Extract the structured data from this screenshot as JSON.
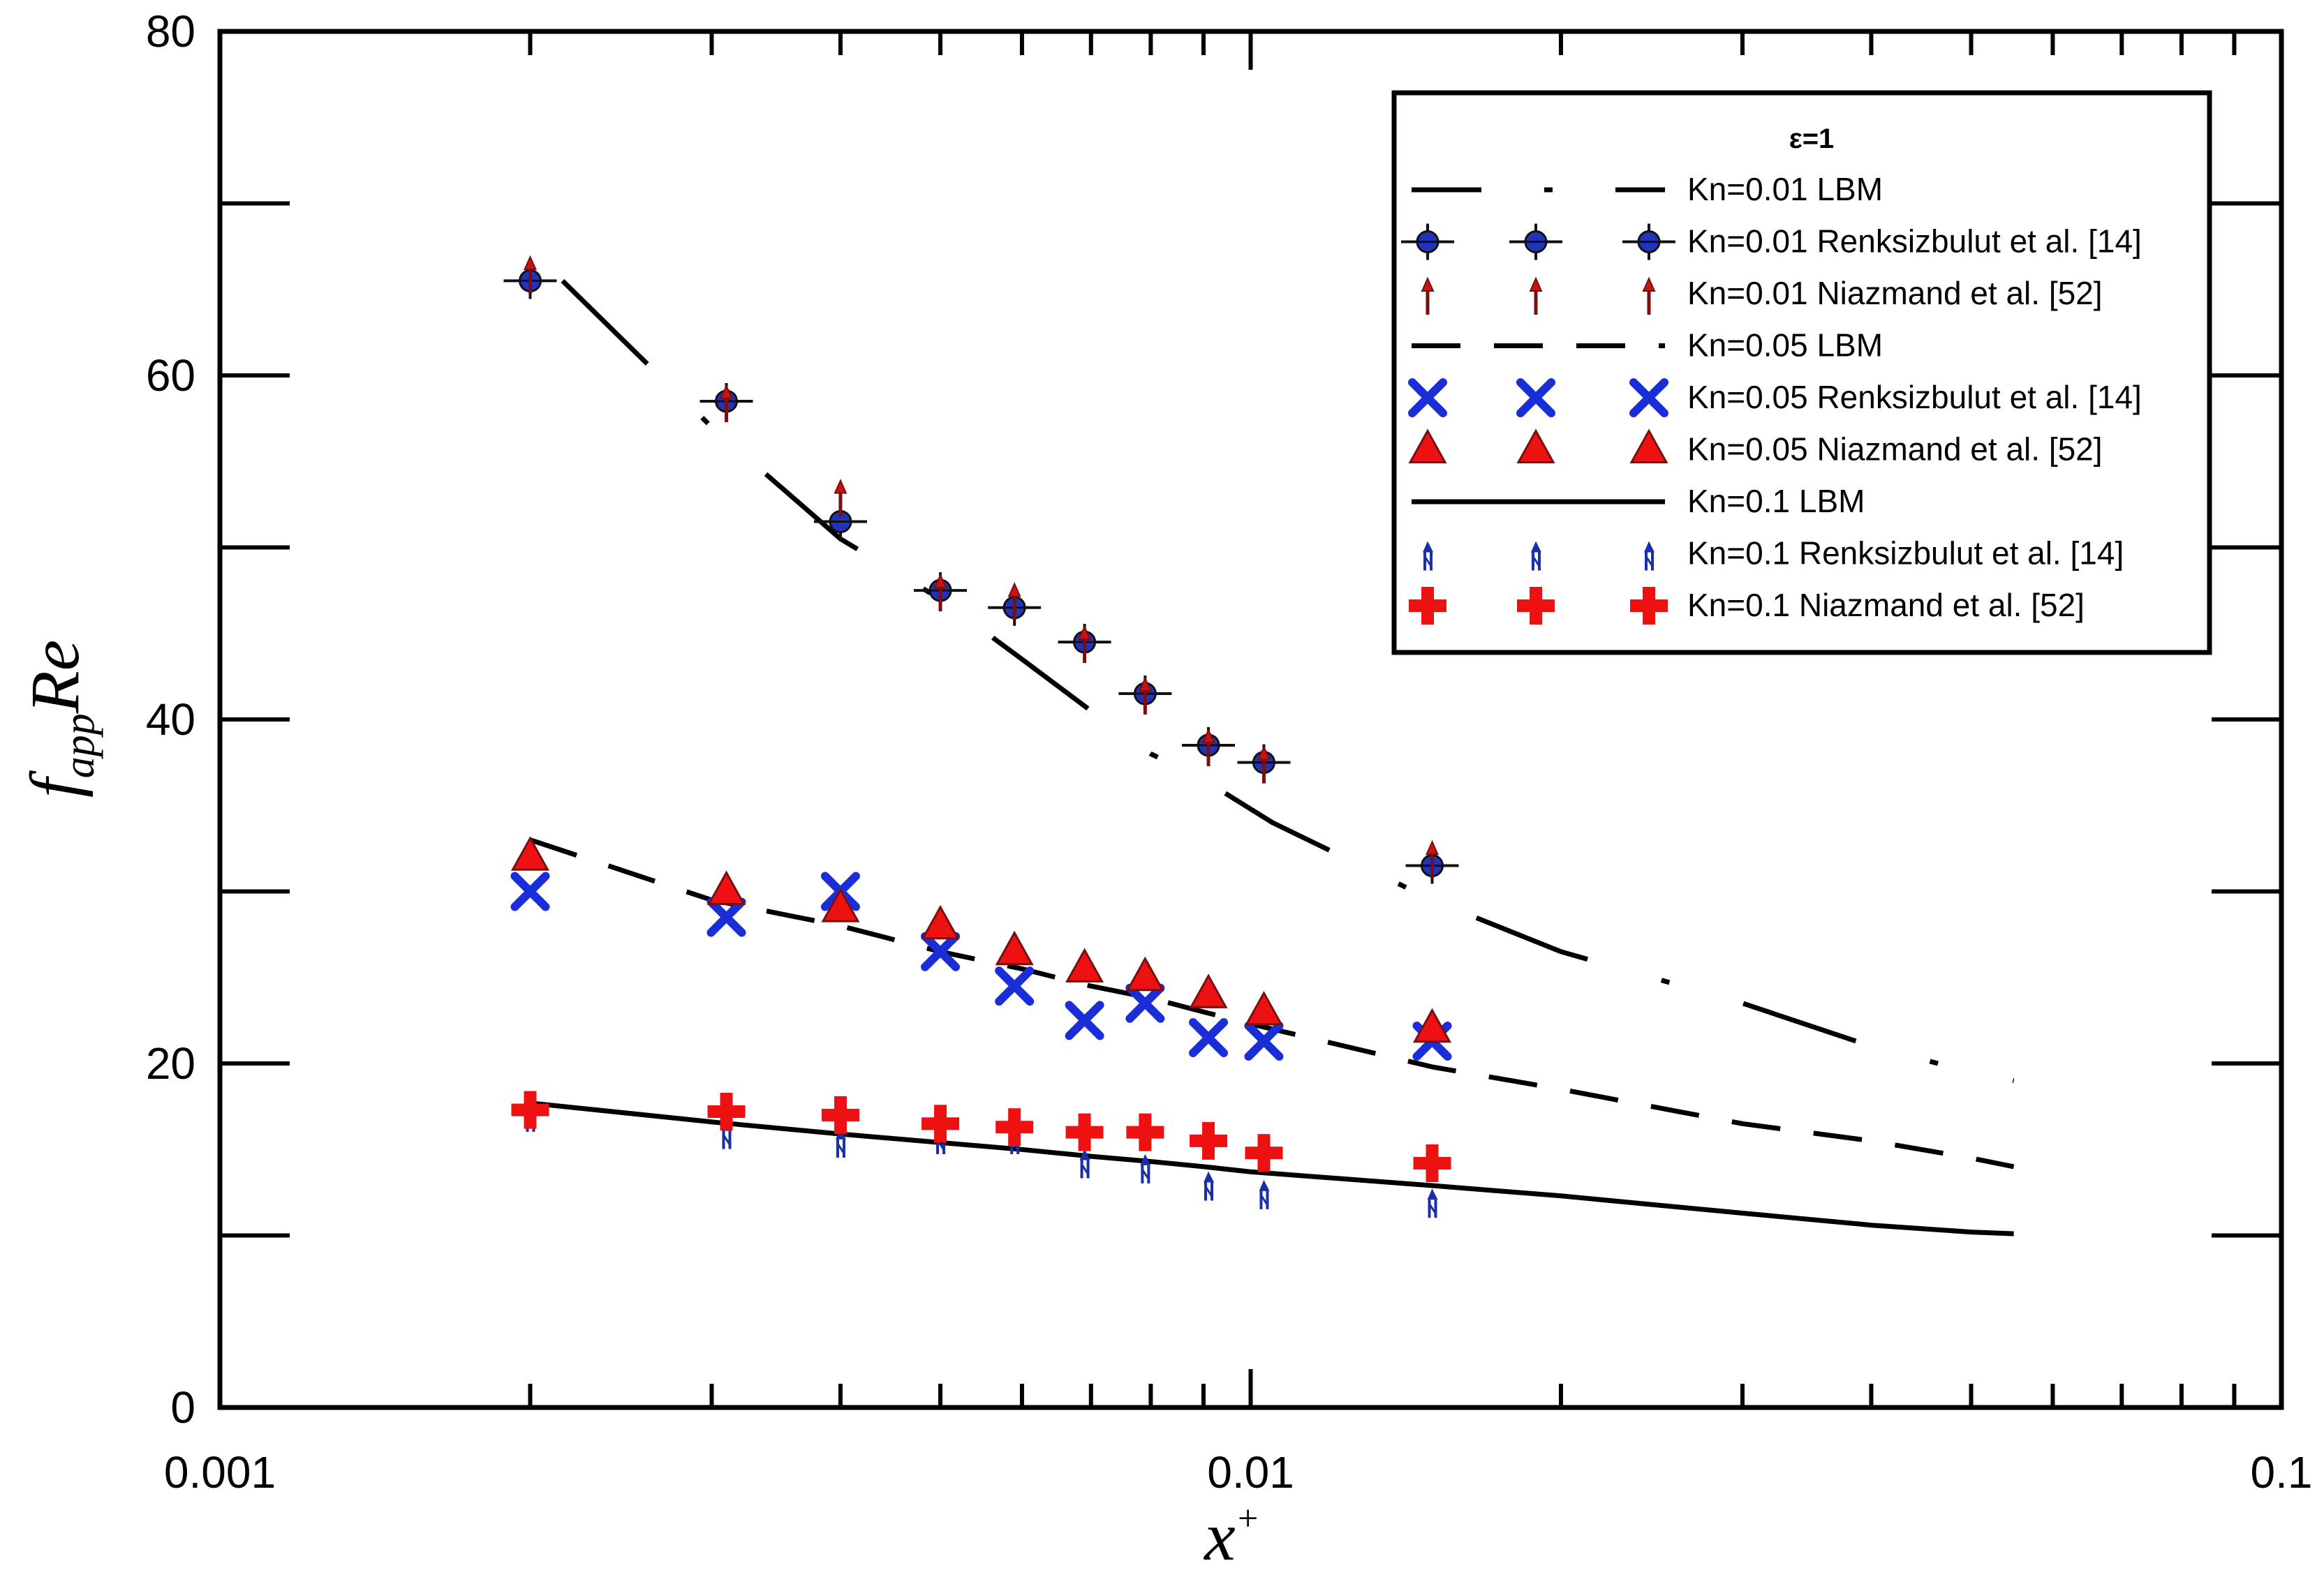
{
  "chart_data": {
    "type": "line",
    "title": "",
    "xlabel": "x",
    "xlabel_sup": "+",
    "ylabel_main": "f",
    "ylabel_sub": "app",
    "ylabel_tail": "Re",
    "xscale": "log",
    "xlim": [
      0.001,
      0.1
    ],
    "ylim": [
      0,
      80
    ],
    "x_tick_labels": [
      {
        "v": 0.001,
        "label": "0.001"
      },
      {
        "v": 0.01,
        "label": "0.01"
      },
      {
        "v": 0.1,
        "label": "0.1"
      }
    ],
    "y_tick_labels": [
      {
        "v": 0,
        "label": "0"
      },
      {
        "v": 20,
        "label": "20"
      },
      {
        "v": 40,
        "label": "40"
      },
      {
        "v": 60,
        "label": "60"
      },
      {
        "v": 80,
        "label": "80"
      }
    ],
    "y_minor_ticks": [
      10,
      30,
      50,
      70
    ],
    "legend": {
      "position": "top-right",
      "title": "ε=1"
    },
    "series": [
      {
        "name": "Kn=0.01 LBM",
        "kind": "line",
        "style": "dashdot",
        "color": "#000000",
        "x": [
          0.00215,
          0.003,
          0.004,
          0.005,
          0.006,
          0.007,
          0.008,
          0.009,
          0.0105,
          0.015,
          0.02,
          0.03,
          0.04,
          0.05,
          0.055
        ],
        "y": [
          65.5,
          57,
          50.5,
          47,
          43.5,
          40.5,
          38,
          36.5,
          34,
          29.5,
          26.5,
          23.5,
          21,
          19.5,
          19
        ]
      },
      {
        "name": "Kn=0.01 Renksizbulut et al. [14]",
        "kind": "marker",
        "marker": "circle-cross",
        "color": "#2233bb",
        "x": [
          0.002,
          0.0031,
          0.004,
          0.005,
          0.0059,
          0.0069,
          0.0079,
          0.0091,
          0.0103,
          0.015
        ],
        "y": [
          65.5,
          58.5,
          51.5,
          47.5,
          46.5,
          44.5,
          41.5,
          38.5,
          37.5,
          31.5
        ]
      },
      {
        "name": "Kn=0.01 Niazmand et al. [52]",
        "kind": "marker",
        "marker": "thin-arrow",
        "color": "#cc1111",
        "x": [
          0.002,
          0.0031,
          0.004,
          0.005,
          0.0059,
          0.0069,
          0.0079,
          0.0091,
          0.0103,
          0.015
        ],
        "y": [
          66,
          58.5,
          53,
          47.5,
          47,
          44.5,
          41.5,
          38.5,
          37.5,
          32
        ]
      },
      {
        "name": "Kn=0.05 LBM",
        "kind": "line",
        "style": "dash",
        "color": "#000000",
        "x": [
          0.002,
          0.003,
          0.004,
          0.005,
          0.006,
          0.007,
          0.008,
          0.009,
          0.01,
          0.015,
          0.02,
          0.03,
          0.04,
          0.05,
          0.055
        ],
        "y": [
          33,
          29.5,
          28,
          26.5,
          25.5,
          24.5,
          23.8,
          23,
          22.3,
          19.8,
          18.5,
          16.5,
          15.5,
          14.5,
          14
        ]
      },
      {
        "name": "Kn=0.05 Renksizbulut et al. [14]",
        "kind": "marker",
        "marker": "x",
        "color": "#1a2ed8",
        "x": [
          0.002,
          0.0031,
          0.004,
          0.005,
          0.0059,
          0.0069,
          0.0079,
          0.0091,
          0.0103,
          0.015
        ],
        "y": [
          30,
          28.5,
          30,
          26.5,
          24.5,
          22.5,
          23.5,
          21.5,
          21.3,
          21.3
        ]
      },
      {
        "name": "Kn=0.05 Niazmand et al. [52]",
        "kind": "marker",
        "marker": "triangle",
        "color": "#ee1111",
        "x": [
          0.002,
          0.0031,
          0.004,
          0.005,
          0.0059,
          0.0069,
          0.0079,
          0.0091,
          0.0103,
          0.015
        ],
        "y": [
          32,
          30,
          29,
          28,
          26.5,
          25.5,
          25,
          24,
          23,
          22
        ]
      },
      {
        "name": "Kn=0.1 LBM",
        "kind": "line",
        "style": "solid",
        "color": "#000000",
        "x": [
          0.002,
          0.003,
          0.004,
          0.005,
          0.006,
          0.007,
          0.008,
          0.009,
          0.01,
          0.015,
          0.02,
          0.03,
          0.04,
          0.05,
          0.055
        ],
        "y": [
          17.7,
          16.6,
          15.9,
          15.4,
          15,
          14.6,
          14.3,
          14,
          13.7,
          12.9,
          12.3,
          11.3,
          10.6,
          10.2,
          10.1
        ]
      },
      {
        "name": "Kn=0.1 Renksizbulut et al. [14]",
        "kind": "marker",
        "marker": "tiny-arrow",
        "color": "#1a2ea8",
        "x": [
          0.002,
          0.0031,
          0.004,
          0.005,
          0.0059,
          0.0069,
          0.0079,
          0.0091,
          0.0103,
          0.015
        ],
        "y": [
          17,
          16,
          15.5,
          15.7,
          15.7,
          14.3,
          14,
          13,
          12.5,
          12
        ]
      },
      {
        "name": "Kn=0.1 Niazmand et al. [52]",
        "kind": "marker",
        "marker": "plus",
        "color": "#ee1111",
        "x": [
          0.002,
          0.0031,
          0.004,
          0.005,
          0.0059,
          0.0069,
          0.0079,
          0.0091,
          0.0103,
          0.015
        ],
        "y": [
          17.3,
          17.2,
          17,
          16.5,
          16.3,
          16,
          16,
          15.5,
          14.8,
          14.2
        ]
      }
    ]
  }
}
